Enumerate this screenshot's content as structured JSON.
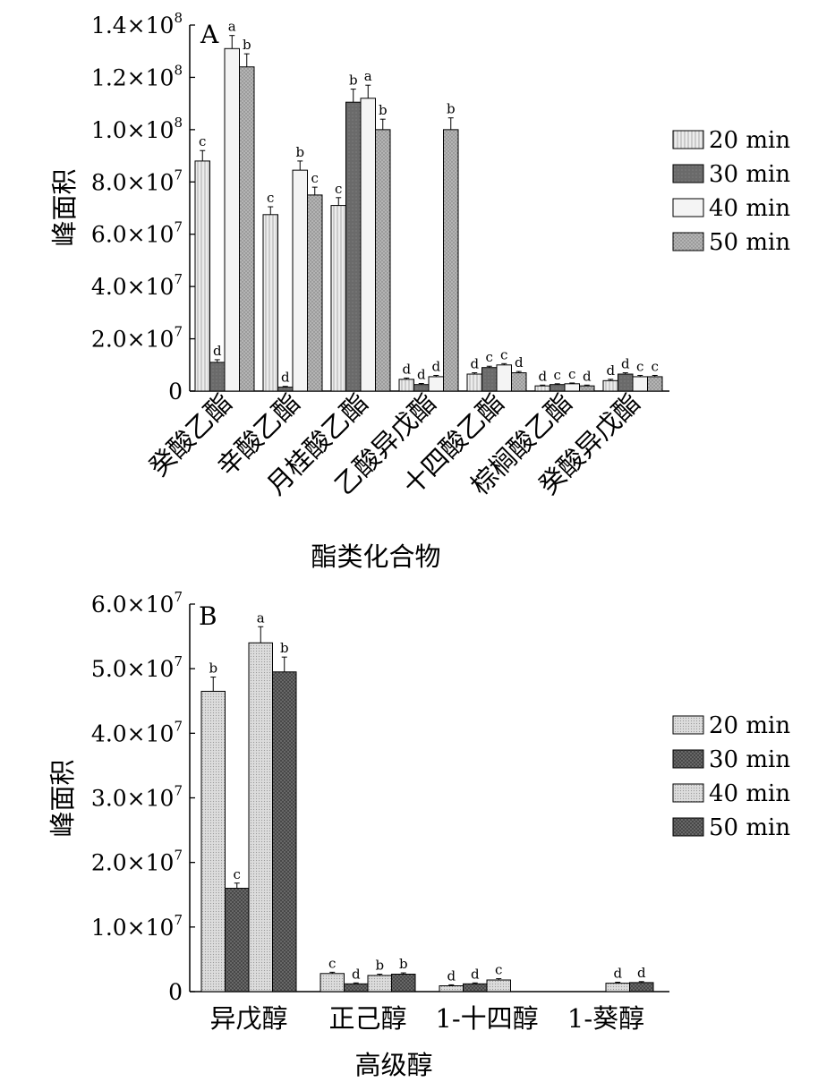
{
  "chart_data": [
    {
      "type": "bar",
      "panel_label": "A",
      "xlabel": "酯类化合物",
      "ylabel": "峰面积",
      "ylim": [
        0,
        140000000
      ],
      "yticks": [
        {
          "value": 0,
          "base": "0",
          "exp": ""
        },
        {
          "value": 20000000,
          "base": "2.0×10",
          "exp": "7"
        },
        {
          "value": 40000000,
          "base": "4.0×10",
          "exp": "7"
        },
        {
          "value": 60000000,
          "base": "6.0×10",
          "exp": "7"
        },
        {
          "value": 80000000,
          "base": "8.0×10",
          "exp": "7"
        },
        {
          "value": 100000000,
          "base": "1.0×10",
          "exp": "8"
        },
        {
          "value": 120000000,
          "base": "1.2×10",
          "exp": "8"
        },
        {
          "value": 140000000,
          "base": "1.4×10",
          "exp": "8"
        }
      ],
      "categories": [
        "癸酸乙酯",
        "辛酸乙酯",
        "月桂酸乙酯",
        "乙酸异戊酯",
        "十四酸乙酯",
        "棕榈酸乙酯",
        "癸酸异戊酯"
      ],
      "legend_position": "right",
      "series": [
        {
          "name": "20 min",
          "color": "#e6e6e6",
          "pattern": "vlines",
          "values": [
            88000000,
            67500000,
            71000000,
            4500000,
            6500000,
            2000000,
            4000000
          ],
          "errors": [
            4000000,
            3000000,
            3000000,
            500000,
            500000,
            300000,
            500000
          ],
          "labels": [
            "c",
            "c",
            "c",
            "d",
            "d",
            "d",
            "d"
          ]
        },
        {
          "name": "30 min",
          "color": "#707070",
          "pattern": "solid",
          "values": [
            11000000,
            1500000,
            110500000,
            2500000,
            9000000,
            2500000,
            6500000
          ],
          "errors": [
            1000000,
            300000,
            5000000,
            400000,
            500000,
            300000,
            500000
          ],
          "labels": [
            "d",
            "d",
            "b",
            "d",
            "c",
            "c",
            "d"
          ]
        },
        {
          "name": "40 min",
          "color": "#f2f2f2",
          "pattern": "none",
          "values": [
            131000000,
            84500000,
            112000000,
            5500000,
            10000000,
            2800000,
            5500000
          ],
          "errors": [
            5000000,
            3500000,
            5000000,
            500000,
            500000,
            300000,
            500000
          ],
          "labels": [
            "a",
            "b",
            "a",
            "d",
            "c",
            "c",
            "c"
          ]
        },
        {
          "name": "50 min",
          "color": "#a8a8a8",
          "pattern": "dots",
          "values": [
            124000000,
            75000000,
            100000000,
            100000000,
            7000000,
            2000000,
            5500000
          ],
          "errors": [
            5000000,
            3000000,
            4000000,
            4500000,
            500000,
            300000,
            500000
          ],
          "labels": [
            "b",
            "c",
            "b",
            "b",
            "d",
            "d",
            "c"
          ]
        }
      ]
    },
    {
      "type": "bar",
      "panel_label": "B",
      "xlabel": "高级醇",
      "ylabel": "峰面积",
      "ylim": [
        0,
        60000000
      ],
      "yticks": [
        {
          "value": 0,
          "base": "0",
          "exp": ""
        },
        {
          "value": 10000000,
          "base": "1.0×10",
          "exp": "7"
        },
        {
          "value": 20000000,
          "base": "2.0×10",
          "exp": "7"
        },
        {
          "value": 30000000,
          "base": "3.0×10",
          "exp": "7"
        },
        {
          "value": 40000000,
          "base": "4.0×10",
          "exp": "7"
        },
        {
          "value": 50000000,
          "base": "5.0×10",
          "exp": "7"
        },
        {
          "value": 60000000,
          "base": "6.0×10",
          "exp": "7"
        }
      ],
      "categories": [
        "异戊醇",
        "正己醇",
        "1-十四醇",
        "1-葵醇"
      ],
      "legend_position": "right",
      "series": [
        {
          "name": "20 min",
          "color": "#d4d4d4",
          "pattern": "fine",
          "values": [
            46500000,
            2800000,
            900000,
            null
          ],
          "errors": [
            2200000,
            200000,
            150000,
            null
          ],
          "labels": [
            "b",
            "c",
            "d",
            ""
          ]
        },
        {
          "name": "30 min",
          "color": "#555555",
          "pattern": "cross",
          "values": [
            16000000,
            1200000,
            1200000,
            null
          ],
          "errors": [
            800000,
            150000,
            150000,
            null
          ],
          "labels": [
            "c",
            "d",
            "d",
            ""
          ]
        },
        {
          "name": "40 min",
          "color": "#c0c0c0",
          "pattern": "fine",
          "values": [
            54000000,
            2500000,
            1800000,
            1300000
          ],
          "errors": [
            2500000,
            200000,
            200000,
            150000
          ],
          "labels": [
            "a",
            "b",
            "c",
            "d"
          ]
        },
        {
          "name": "50 min",
          "color": "#7a7a7a",
          "pattern": "cross",
          "values": [
            49500000,
            2700000,
            null,
            1400000
          ],
          "errors": [
            2300000,
            200000,
            null,
            150000
          ],
          "labels": [
            "b",
            "b",
            "",
            "d"
          ]
        }
      ]
    }
  ]
}
